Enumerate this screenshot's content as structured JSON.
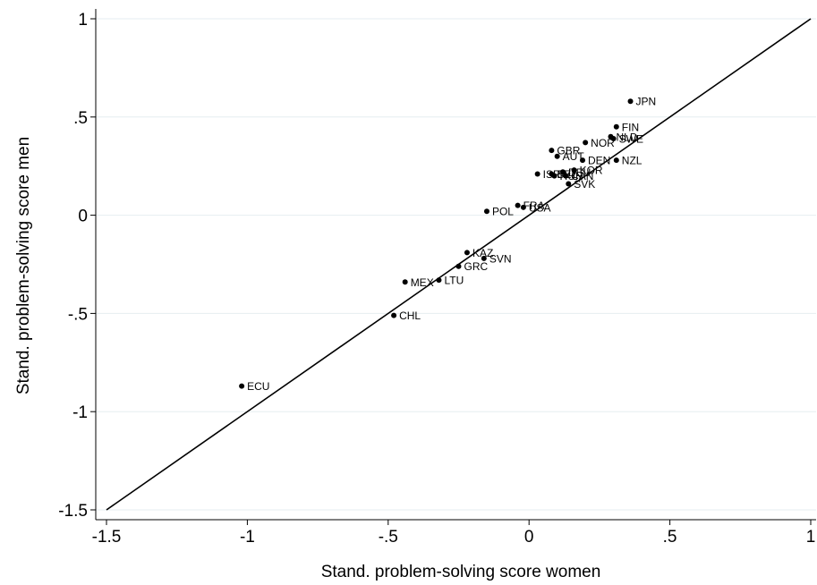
{
  "chart_data": {
    "type": "scatter",
    "title": "",
    "xlabel": "Stand. problem-solving score women",
    "ylabel": "Stand. problem-solving score men",
    "xlim": [
      -1.5,
      1
    ],
    "ylim": [
      -1.5,
      1
    ],
    "x_ticks": [
      "-1.5",
      "-1",
      "-.5",
      "0",
      ".5",
      "1"
    ],
    "y_ticks": [
      "-1.5",
      "-1",
      "-.5",
      "0",
      ".5",
      "1"
    ],
    "grid": "horizontal",
    "reference_line": {
      "from": [
        -1.5,
        -1.5
      ],
      "to": [
        1,
        1
      ],
      "label": "45-degree line"
    },
    "points": [
      {
        "label": "JPN",
        "x": 0.36,
        "y": 0.58
      },
      {
        "label": "FIN",
        "x": 0.31,
        "y": 0.45
      },
      {
        "label": "NLD",
        "x": 0.29,
        "y": 0.4
      },
      {
        "label": "SWE",
        "x": 0.3,
        "y": 0.39
      },
      {
        "label": "NOR",
        "x": 0.2,
        "y": 0.37
      },
      {
        "label": "GBR",
        "x": 0.08,
        "y": 0.33
      },
      {
        "label": "AUT",
        "x": 0.1,
        "y": 0.3
      },
      {
        "label": "DEN",
        "x": 0.19,
        "y": 0.28
      },
      {
        "label": "NZL",
        "x": 0.31,
        "y": 0.28
      },
      {
        "label": "ISR",
        "x": 0.03,
        "y": 0.21
      },
      {
        "label": "BEL",
        "x": 0.08,
        "y": 0.21
      },
      {
        "label": "DEU",
        "x": 0.12,
        "y": 0.22
      },
      {
        "label": "KOR",
        "x": 0.16,
        "y": 0.23
      },
      {
        "label": "HUN",
        "x": 0.09,
        "y": 0.2
      },
      {
        "label": "CAN",
        "x": 0.13,
        "y": 0.2
      },
      {
        "label": "SVK",
        "x": 0.14,
        "y": 0.16
      },
      {
        "label": "FRA",
        "x": -0.04,
        "y": 0.05
      },
      {
        "label": "USA",
        "x": -0.02,
        "y": 0.04
      },
      {
        "label": "POL",
        "x": -0.15,
        "y": 0.02
      },
      {
        "label": "KAZ",
        "x": -0.22,
        "y": -0.19
      },
      {
        "label": "SVN",
        "x": -0.16,
        "y": -0.22
      },
      {
        "label": "GRC",
        "x": -0.25,
        "y": -0.26
      },
      {
        "label": "LTU",
        "x": -0.32,
        "y": -0.33
      },
      {
        "label": "MEX",
        "x": -0.44,
        "y": -0.34
      },
      {
        "label": "CHL",
        "x": -0.48,
        "y": -0.51
      },
      {
        "label": "ECU",
        "x": -1.02,
        "y": -0.87
      }
    ]
  },
  "colors": {
    "background": "#ffffff",
    "marker": "#000000",
    "grid": "#e6eef0",
    "line": "#000000"
  }
}
